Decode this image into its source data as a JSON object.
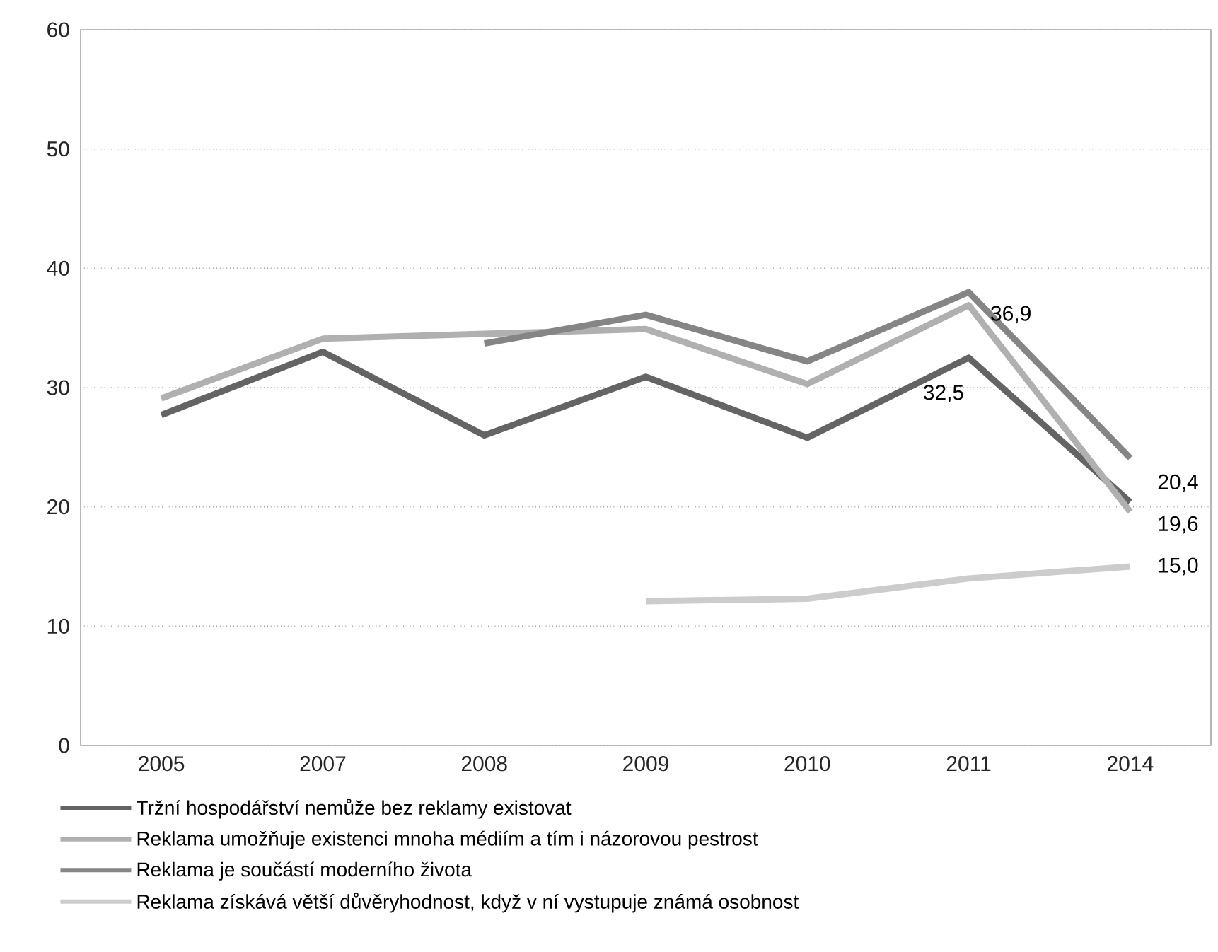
{
  "chart_data": {
    "type": "line",
    "categories": [
      "2005",
      "2007",
      "2008",
      "2009",
      "2010",
      "2011",
      "2014"
    ],
    "series": [
      {
        "name": "Tržní hospodářství nemůže bez reklamy existovat",
        "color": "#646464",
        "values": [
          27.7,
          33.0,
          26.0,
          30.9,
          25.8,
          32.5,
          20.4
        ],
        "value_labels": [
          null,
          null,
          null,
          null,
          null,
          "32,5",
          "20,4"
        ]
      },
      {
        "name": "Reklama umožňuje existenci mnoha médiím a tím i názorovou pestrost",
        "color": "#b0b0b0",
        "values": [
          29.1,
          34.1,
          34.5,
          34.9,
          30.3,
          36.9,
          19.6
        ],
        "value_labels": [
          null,
          null,
          null,
          null,
          null,
          "36,9",
          "19,6"
        ]
      },
      {
        "name": "Reklama je součástí moderního života",
        "color": "#858585",
        "values": [
          null,
          null,
          33.7,
          36.1,
          32.2,
          38.0,
          24.1
        ]
      },
      {
        "name": "Reklama získává větší důvěryhodnost,  když  v ní vystupuje  známá osobnost",
        "color": "#cccccc",
        "values": [
          null,
          null,
          null,
          12.1,
          12.3,
          14.0,
          15.0
        ],
        "value_labels": [
          null,
          null,
          null,
          null,
          null,
          null,
          "15,0"
        ]
      }
    ],
    "ylim": [
      0,
      60
    ],
    "yticks": [
      0,
      10,
      20,
      30,
      40,
      50,
      60
    ],
    "grid": "y",
    "legend": "bottom",
    "marker": "none",
    "line_style": "solid"
  }
}
